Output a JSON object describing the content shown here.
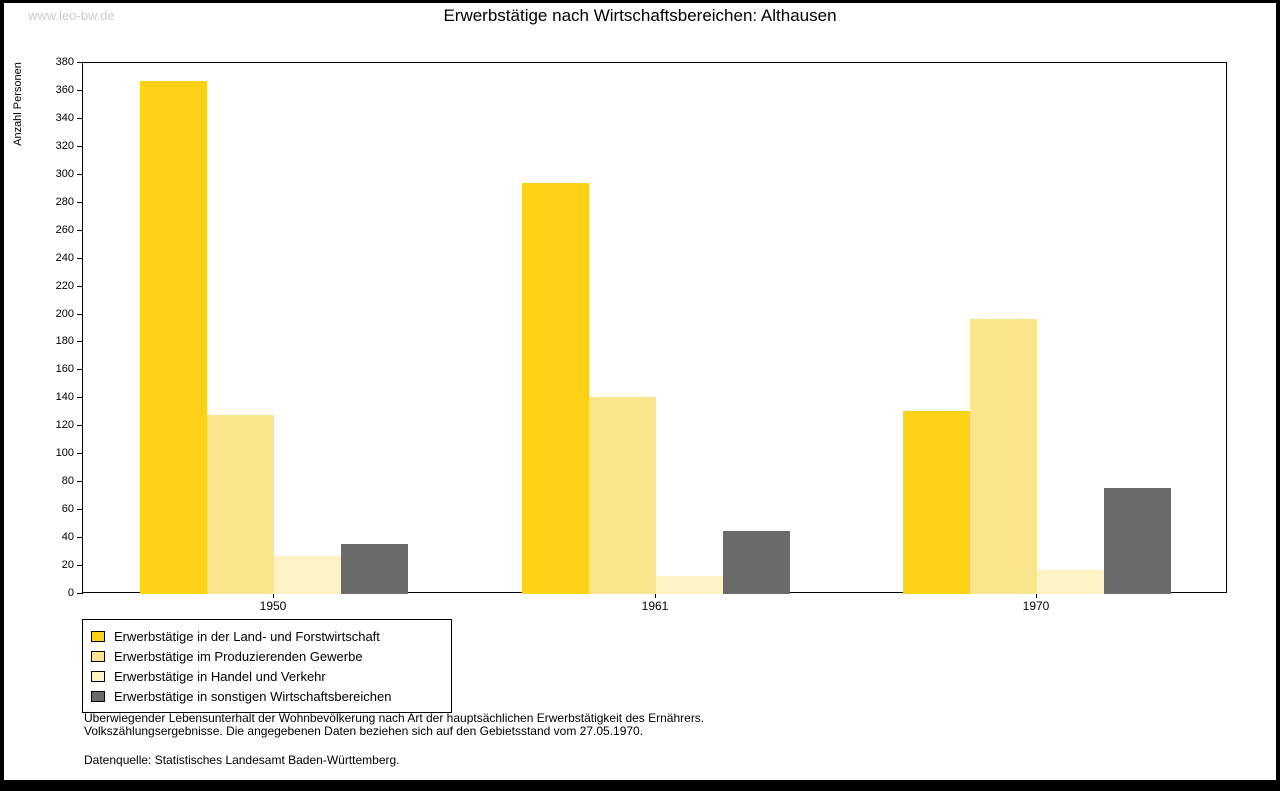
{
  "page": {
    "watermark": "www.leo-bw.de",
    "footer_line1": "Überwiegender Lebensunterhalt der Wohnbevölkerung nach Art der hauptsächlichen Erwerbstätigkeit des Ernährers.",
    "footer_line2": "Volkszählungsergebnisse. Die angegebenen Daten beziehen sich auf den Gebietsstand vom 27.05.1970.",
    "source": "Datenquelle: Statistisches Landesamt Baden-Württemberg."
  },
  "chart_data": {
    "type": "bar",
    "title": "Erwerbstätige nach Wirtschaftsbereichen: Althausen",
    "ylabel": "Anzahl Personen",
    "xlabel": "",
    "ylim": [
      0,
      380
    ],
    "ytick_step": 20,
    "grid": false,
    "legend_position": "bottom-left",
    "categories": [
      "1950",
      "1961",
      "1970"
    ],
    "series": [
      {
        "name": "Erwerbstätige in der Land- und Forstwirtschaft",
        "color": "#FCD116",
        "values": [
          367,
          294,
          131
        ]
      },
      {
        "name": "Erwerbstätige im Produzierenden Gewerbe",
        "color": "#FAE58C",
        "values": [
          128,
          141,
          197
        ]
      },
      {
        "name": "Erwerbstätige in Handel und Verkehr",
        "color": "#FDF3C7",
        "values": [
          27,
          13,
          17
        ]
      },
      {
        "name": "Erwerbstätige in sonstigen Wirtschaftsbereichen",
        "color": "#6B6B6B",
        "values": [
          36,
          45,
          76
        ]
      }
    ]
  }
}
